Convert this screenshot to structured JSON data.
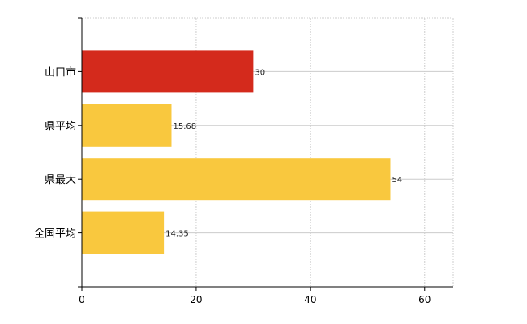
{
  "chart_data": {
    "type": "bar",
    "orientation": "horizontal",
    "categories": [
      "山口市",
      "県平均",
      "県最大",
      "全国平均"
    ],
    "values": [
      30,
      15.68,
      54,
      14.35
    ],
    "value_labels": [
      "30",
      "15.68",
      "54",
      "14.35"
    ],
    "xlim": [
      0,
      65
    ],
    "xticks": [
      0,
      20,
      40,
      60
    ],
    "xtick_labels": [
      "0",
      "20",
      "40",
      "60"
    ],
    "grid": true,
    "legend": "none",
    "bar_colors": [
      "#d42a1c",
      "#f9c83e",
      "#f9c83e",
      "#f9c83e"
    ],
    "grid_color": "#cccccc"
  }
}
